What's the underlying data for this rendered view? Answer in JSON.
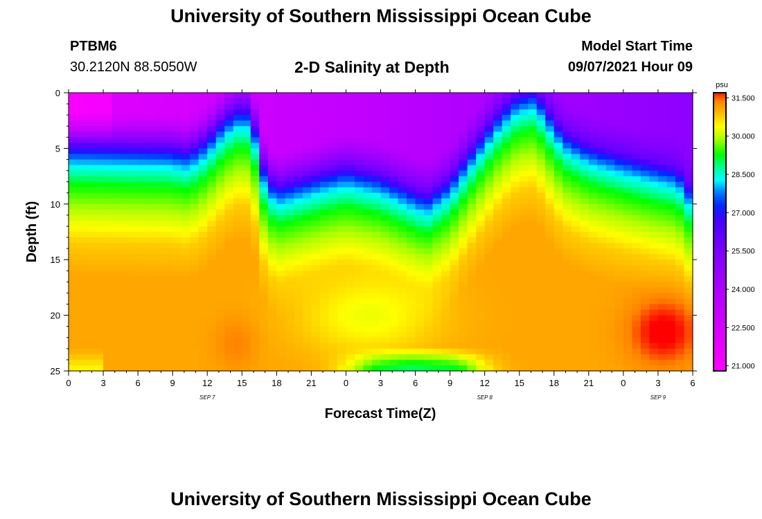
{
  "header": {
    "title": "University of Southern Mississippi Ocean Cube",
    "station_id": "PTBM6",
    "station_coords": "30.2120N  88.5050W",
    "plot_title": "2-D Salinity at Depth",
    "model_label": "Model Start Time",
    "model_time": "09/07/2021 Hour 09"
  },
  "footer": {
    "title": "University of Southern Mississippi Ocean Cube"
  },
  "chart_data": {
    "type": "heatmap",
    "title": "2-D Salinity at Depth",
    "xlabel": "Forecast Time(Z)",
    "ylabel": "Depth (ft)",
    "x_range_hours": [
      0,
      54
    ],
    "y_range_ft": [
      0,
      25
    ],
    "x_ticks": [
      {
        "h": 0,
        "label": "0"
      },
      {
        "h": 3,
        "label": "3"
      },
      {
        "h": 6,
        "label": "6"
      },
      {
        "h": 9,
        "label": "9"
      },
      {
        "h": 12,
        "label": "12"
      },
      {
        "h": 15,
        "label": "15"
      },
      {
        "h": 18,
        "label": "18"
      },
      {
        "h": 21,
        "label": "21"
      },
      {
        "h": 24,
        "label": "0"
      },
      {
        "h": 27,
        "label": "3"
      },
      {
        "h": 30,
        "label": "6"
      },
      {
        "h": 33,
        "label": "9"
      },
      {
        "h": 36,
        "label": "12"
      },
      {
        "h": 39,
        "label": "15"
      },
      {
        "h": 42,
        "label": "18"
      },
      {
        "h": 45,
        "label": "21"
      },
      {
        "h": 48,
        "label": "0"
      },
      {
        "h": 51,
        "label": "3"
      },
      {
        "h": 54,
        "label": "6"
      }
    ],
    "day_labels": [
      {
        "h": 12,
        "label": "SEP 7"
      },
      {
        "h": 36,
        "label": "SEP 8"
      },
      {
        "h": 51,
        "label": "SEP 9"
      }
    ],
    "y_ticks": [
      0,
      5,
      10,
      15,
      20,
      25
    ],
    "colorbar": {
      "unit": "psu",
      "min": 20.8,
      "max": 31.7,
      "ticks": [
        "31.500",
        "30.000",
        "28.500",
        "27.000",
        "25.500",
        "24.000",
        "22.500",
        "21.000"
      ]
    },
    "fresh_layer_bottom_ft": [
      {
        "h": 0,
        "d": 4.5
      },
      {
        "h": 9,
        "d": 4.7
      },
      {
        "h": 10,
        "d": 5.0
      },
      {
        "h": 11,
        "d": 4.6
      },
      {
        "h": 12,
        "d": 3.8
      },
      {
        "h": 13,
        "d": 2.6
      },
      {
        "h": 14,
        "d": 1.6
      },
      {
        "h": 15,
        "d": 1.0
      },
      {
        "h": 15.8,
        "d": 1.5
      },
      {
        "h": 16.5,
        "d": 4.5
      },
      {
        "h": 17,
        "d": 7.0
      },
      {
        "h": 18,
        "d": 8.2
      },
      {
        "h": 20,
        "d": 7.6
      },
      {
        "h": 22,
        "d": 7.0
      },
      {
        "h": 24,
        "d": 6.5
      },
      {
        "h": 27,
        "d": 7.2
      },
      {
        "h": 30,
        "d": 8.6
      },
      {
        "h": 31,
        "d": 9.0
      },
      {
        "h": 33,
        "d": 7.5
      },
      {
        "h": 35,
        "d": 4.6
      },
      {
        "h": 37,
        "d": 1.8
      },
      {
        "h": 38.5,
        "d": 0.2
      },
      {
        "h": 40,
        "d": -0.5
      },
      {
        "h": 41,
        "d": 0.5
      },
      {
        "h": 42,
        "d": 2.2
      },
      {
        "h": 43,
        "d": 3.4
      },
      {
        "h": 45,
        "d": 4.5
      },
      {
        "h": 48,
        "d": 5.4
      },
      {
        "h": 51,
        "d": 6.2
      },
      {
        "h": 52,
        "d": 6.4
      },
      {
        "h": 53,
        "d": 7.0
      },
      {
        "h": 54,
        "d": 8.8
      }
    ],
    "salinity_profile_psu": [
      {
        "dz": -3,
        "psu": 21.0
      },
      {
        "dz": 0,
        "psu": 26.0
      },
      {
        "dz": 0.4,
        "psu": 26.6
      },
      {
        "dz": 1.2,
        "psu": 27.6
      },
      {
        "dz": 2.2,
        "psu": 28.4
      },
      {
        "dz": 3.8,
        "psu": 29.3
      },
      {
        "dz": 6.5,
        "psu": 30.1
      },
      {
        "dz": 9.0,
        "psu": 30.8
      },
      {
        "dz": 12.0,
        "psu": 31.1
      }
    ],
    "high_salinity_cores": [
      {
        "h": 14.5,
        "d": 22.5,
        "psu": 31.4,
        "rh": 1.5,
        "rd": 2.0
      },
      {
        "h": 51.5,
        "d": 21.5,
        "psu": 31.9,
        "rh": 2.5,
        "rd": 2.5
      },
      {
        "h": 26,
        "d": 20.0,
        "psu": 30.3,
        "rh": 5.0,
        "rd": 3.0
      }
    ],
    "bottom_freshening": [
      {
        "h": 27,
        "psu": 29.2
      },
      {
        "h": 30,
        "psu": 28.8
      },
      {
        "h": 33,
        "psu": 29.0
      }
    ]
  }
}
